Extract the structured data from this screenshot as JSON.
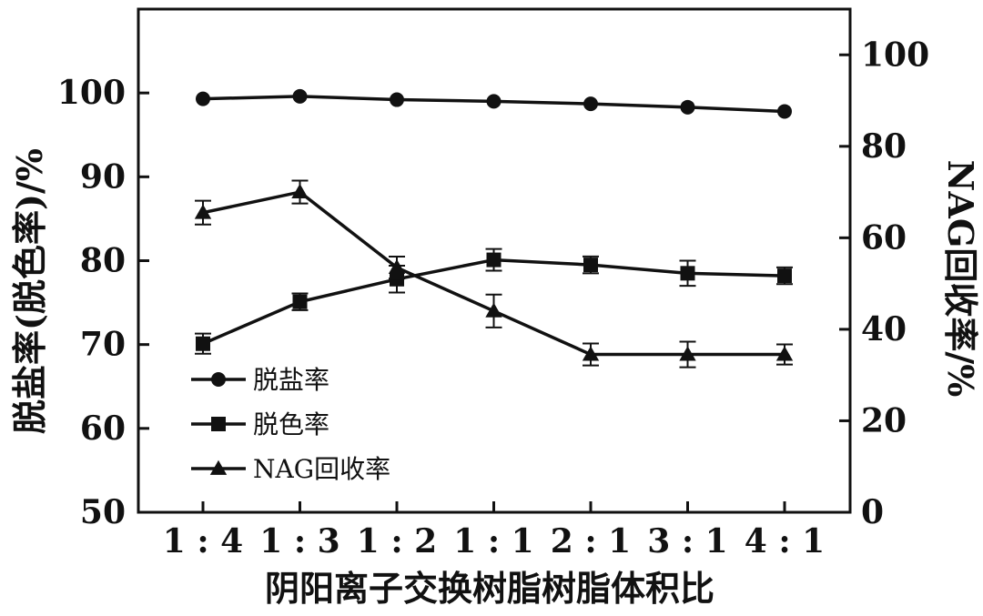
{
  "chart_data": {
    "type": "line",
    "categories": [
      "1:4",
      "1:3",
      "1:2",
      "1:1",
      "2:1",
      "3:1",
      "4:1"
    ],
    "xlabel": "阴阳离子交换树脂树脂体积比",
    "ylabel_left": "脱盐率(脱色率)/%",
    "ylabel_right": "NAG回收率/%",
    "ylim_left": [
      50,
      110
    ],
    "ylim_right": [
      0,
      110
    ],
    "yticks_left": [
      50,
      60,
      70,
      80,
      90,
      100
    ],
    "yticks_right": [
      0,
      20,
      40,
      60,
      80,
      100
    ],
    "grid": false,
    "legend_position": "lower-left",
    "series": [
      {
        "name": "脱盐率",
        "axis": "left",
        "marker": "circle",
        "values": [
          99.3,
          99.6,
          99.2,
          99.0,
          98.7,
          98.3,
          97.8
        ],
        "errors": [
          0,
          0,
          0,
          0,
          0,
          0,
          0
        ]
      },
      {
        "name": "脱色率",
        "axis": "left",
        "marker": "square",
        "values": [
          70.1,
          75.1,
          77.8,
          80.1,
          79.5,
          78.5,
          78.2
        ],
        "errors": [
          1.2,
          1.0,
          1.6,
          1.3,
          1.0,
          1.5,
          1.0
        ]
      },
      {
        "name": "NAG回收率",
        "axis": "right",
        "marker": "triangle",
        "values": [
          65.5,
          70.0,
          53.5,
          44.0,
          34.5,
          34.5,
          34.5
        ],
        "errors": [
          2.6,
          2.5,
          2.4,
          3.6,
          2.4,
          2.8,
          2.2
        ]
      }
    ],
    "colors": {
      "ink": "#111111"
    }
  }
}
